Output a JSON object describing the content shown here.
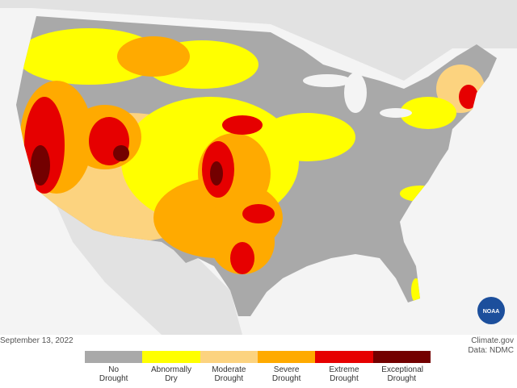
{
  "date": "September 13, 2022",
  "credit": {
    "site": "Climate.gov",
    "source": "Data: NDMC"
  },
  "logo": "NOAA",
  "legend": [
    {
      "label": "No Drought",
      "color": "#a9a9a9"
    },
    {
      "label": "Abnormally Dry",
      "color": "#ffff00"
    },
    {
      "label": "Moderate Drought",
      "color": "#fcd37f"
    },
    {
      "label": "Severe Drought",
      "color": "#ffaa00"
    },
    {
      "label": "Extreme Drought",
      "color": "#e60000"
    },
    {
      "label": "Exceptional Drought",
      "color": "#730000"
    }
  ]
}
